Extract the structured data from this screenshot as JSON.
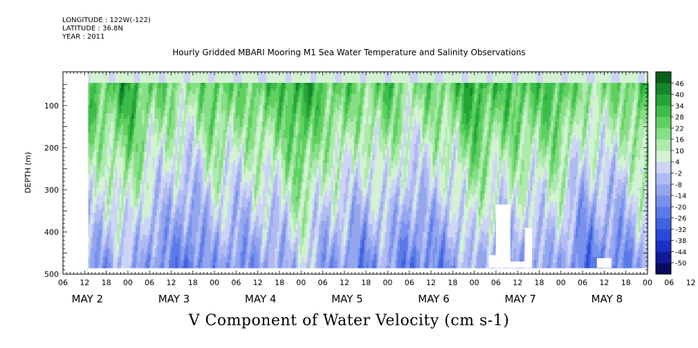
{
  "header": {
    "longitude": "LONGITUDE : 122W(-122)",
    "latitude": "LATITUDE : 36.8N",
    "year": "YEAR : 2011"
  },
  "chart_data": {
    "type": "heatmap",
    "title": "Hourly Gridded MBARI Mooring M1 Sea Water Temperature and Salinity Observations",
    "xlabel": "V Component of Water Velocity (cm s-1)",
    "ylabel": "DEPTH (m)",
    "y_ticks": [
      100,
      200,
      300,
      400,
      500
    ],
    "ylim": [
      20,
      500
    ],
    "y_inverted": true,
    "x_hour_ticks": [
      "06",
      "12",
      "18",
      "00",
      "06",
      "12",
      "18",
      "00",
      "06",
      "12",
      "18",
      "00",
      "06",
      "12",
      "18",
      "00",
      "06",
      "12",
      "18",
      "00",
      "06",
      "12",
      "18",
      "00",
      "06",
      "12",
      "18",
      "00",
      "06",
      "12",
      "18"
    ],
    "x_day_labels": [
      "MAY  2",
      "MAY  3",
      "MAY  4",
      "MAY  5",
      "MAY  6",
      "MAY  7",
      "MAY  8"
    ],
    "xlim_hours": [
      6,
      168
    ],
    "data_start_hour": 13,
    "data_depth_range": [
      20,
      485
    ],
    "colorbar": {
      "levels": [
        -50,
        -44,
        -38,
        -32,
        -26,
        -20,
        -14,
        -8,
        -2,
        4,
        10,
        16,
        22,
        28,
        34,
        40,
        46
      ],
      "colors": [
        "#0a0a60",
        "#11189a",
        "#1a2fc4",
        "#2a4ad8",
        "#3f63e0",
        "#5a7ae8",
        "#7891ec",
        "#94a6ee",
        "#b0bbf2",
        "#cdd4f6",
        "#d2f2d2",
        "#aeeaae",
        "#86de86",
        "#5fd05f",
        "#3cbd4a",
        "#22a535",
        "#14862a",
        "#0b5e1c"
      ]
    },
    "no_data_regions": [
      {
        "hours": [
          124,
          126
        ],
        "depths": [
          455,
          485
        ]
      },
      {
        "hours": [
          126,
          130
        ],
        "depths": [
          335,
          485
        ]
      },
      {
        "hours": [
          130,
          134
        ],
        "depths": [
          470,
          485
        ]
      },
      {
        "hours": [
          134,
          136
        ],
        "depths": [
          390,
          485
        ]
      },
      {
        "hours": [
          154,
          158
        ],
        "depths": [
          462,
          485
        ]
      }
    ],
    "field_note": "V velocity field; green (positive) dominant near surface, blue (negative) dominant at depth"
  }
}
